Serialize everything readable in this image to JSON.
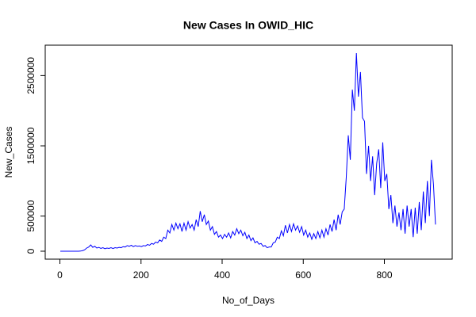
{
  "chart_data": {
    "type": "line",
    "title": "New Cases In OWID_HIC",
    "x_label": "No_of_Days",
    "y_label": "New_Cases",
    "color": "#0000ff",
    "x": [
      1,
      6,
      11,
      16,
      21,
      26,
      31,
      36,
      41,
      46,
      51,
      56,
      61,
      66,
      71,
      76,
      81,
      86,
      91,
      96,
      101,
      106,
      111,
      116,
      121,
      126,
      131,
      136,
      141,
      146,
      151,
      156,
      161,
      166,
      171,
      176,
      181,
      186,
      191,
      196,
      201,
      206,
      211,
      216,
      221,
      226,
      231,
      236,
      241,
      246,
      251,
      256,
      261,
      266,
      271,
      276,
      281,
      286,
      291,
      296,
      301,
      306,
      311,
      316,
      321,
      326,
      331,
      336,
      341,
      346,
      351,
      356,
      361,
      366,
      371,
      376,
      381,
      386,
      391,
      396,
      401,
      406,
      411,
      416,
      421,
      426,
      431,
      436,
      441,
      446,
      451,
      456,
      461,
      466,
      471,
      476,
      481,
      486,
      491,
      496,
      501,
      506,
      511,
      516,
      521,
      526,
      531,
      536,
      541,
      546,
      551,
      556,
      561,
      566,
      571,
      576,
      581,
      586,
      591,
      596,
      601,
      606,
      611,
      616,
      621,
      626,
      631,
      636,
      641,
      646,
      651,
      656,
      661,
      666,
      671,
      676,
      681,
      686,
      691,
      696,
      701,
      706,
      711,
      716,
      721,
      726,
      731,
      736,
      741,
      746,
      751,
      756,
      761,
      766,
      771,
      776,
      781,
      786,
      791,
      796,
      801,
      806,
      811,
      816,
      821,
      826,
      831,
      836,
      841,
      846,
      851,
      856,
      861,
      866,
      871,
      876,
      881,
      886,
      891,
      896,
      901,
      906,
      911,
      916,
      921,
      926
    ],
    "values": [
      0,
      0,
      0,
      0,
      0,
      0,
      0,
      0,
      0,
      500,
      2000,
      8000,
      20000,
      45000,
      60000,
      90000,
      55000,
      70000,
      45000,
      55000,
      40000,
      50000,
      35000,
      45000,
      40000,
      50000,
      38000,
      50000,
      45000,
      55000,
      50000,
      65000,
      60000,
      80000,
      70000,
      85000,
      65000,
      80000,
      70000,
      75000,
      65000,
      80000,
      75000,
      95000,
      85000,
      110000,
      100000,
      130000,
      120000,
      160000,
      140000,
      200000,
      180000,
      300000,
      260000,
      380000,
      300000,
      400000,
      320000,
      390000,
      280000,
      400000,
      300000,
      420000,
      330000,
      380000,
      300000,
      450000,
      350000,
      570000,
      420000,
      520000,
      380000,
      430000,
      300000,
      350000,
      240000,
      280000,
      200000,
      230000,
      180000,
      240000,
      200000,
      260000,
      190000,
      280000,
      230000,
      320000,
      250000,
      300000,
      220000,
      270000,
      180000,
      230000,
      150000,
      190000,
      120000,
      140000,
      100000,
      110000,
      70000,
      80000,
      50000,
      60000,
      60000,
      120000,
      130000,
      200000,
      180000,
      290000,
      220000,
      370000,
      260000,
      380000,
      280000,
      390000,
      300000,
      360000,
      270000,
      350000,
      230000,
      300000,
      200000,
      260000,
      170000,
      250000,
      180000,
      280000,
      190000,
      300000,
      200000,
      320000,
      230000,
      380000,
      280000,
      450000,
      300000,
      520000,
      380000,
      560000,
      600000,
      1050000,
      1650000,
      1300000,
      2300000,
      2000000,
      2820000,
      2200000,
      2550000,
      1900000,
      1850000,
      1100000,
      1500000,
      1000000,
      1350000,
      800000,
      1250000,
      1450000,
      900000,
      1550000,
      1000000,
      1100000,
      600000,
      800000,
      400000,
      650000,
      350000,
      550000,
      300000,
      600000,
      250000,
      650000,
      350000,
      600000,
      200000,
      620000,
      250000,
      700000,
      300000,
      850000,
      400000,
      1000000,
      500000,
      1300000,
      950000,
      380000
    ],
    "xlim": [
      -36.2,
      967.2
    ],
    "xticks": [
      0,
      200,
      400,
      600,
      800
    ],
    "ylim": [
      -113000,
      2933000
    ],
    "yticks": [
      0,
      500000,
      1500000,
      2500000
    ]
  }
}
